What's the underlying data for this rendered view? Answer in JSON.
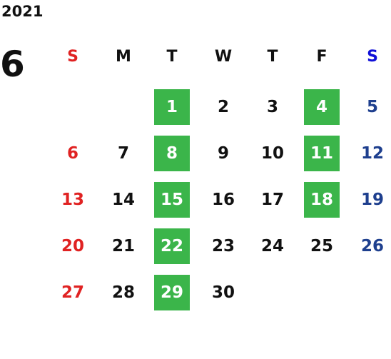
{
  "year": "2021",
  "month": "6",
  "weekdays": [
    "S",
    "M",
    "T",
    "W",
    "T",
    "F",
    "S"
  ],
  "weeks": [
    [
      null,
      null,
      1,
      2,
      3,
      4,
      5
    ],
    [
      6,
      7,
      8,
      9,
      10,
      11,
      12
    ],
    [
      13,
      14,
      15,
      16,
      17,
      18,
      19
    ],
    [
      20,
      21,
      22,
      23,
      24,
      25,
      26
    ],
    [
      27,
      28,
      29,
      30,
      null,
      null,
      null
    ]
  ],
  "highlighted": [
    1,
    4,
    8,
    11,
    15,
    18,
    22,
    29
  ]
}
